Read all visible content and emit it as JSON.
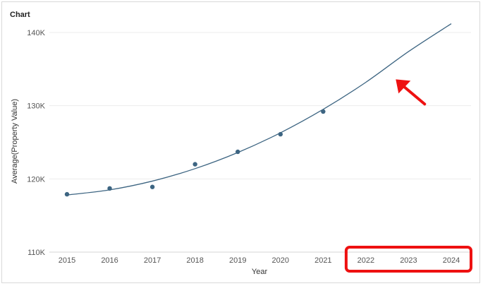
{
  "header": {
    "title": "Chart"
  },
  "colors": {
    "series": "#3d6582",
    "annotation": "#ee1111",
    "grid": "#ececec"
  },
  "chart_data": {
    "type": "scatter",
    "title": "",
    "xlabel": "Year",
    "ylabel": "Average(Property Value)",
    "x": [
      2015,
      2016,
      2017,
      2018,
      2019,
      2020,
      2021
    ],
    "y": [
      117900,
      118700,
      118900,
      122000,
      123700,
      126100,
      129200
    ],
    "x_ticks": [
      "2015",
      "2016",
      "2017",
      "2018",
      "2019",
      "2020",
      "2021",
      "2022",
      "2023",
      "2024"
    ],
    "xlim": [
      2015,
      2024
    ],
    "ylim": [
      110000,
      140000
    ],
    "y_ticks": [
      {
        "value": 110000,
        "label": "110K"
      },
      {
        "value": 120000,
        "label": "120K"
      },
      {
        "value": 130000,
        "label": "130K"
      },
      {
        "value": 140000,
        "label": "140K"
      }
    ],
    "trendline": {
      "type": "polynomial",
      "x": [
        2015,
        2016,
        2017,
        2018,
        2019,
        2020,
        2021,
        2022,
        2023,
        2024
      ],
      "y": [
        117800,
        118500,
        119700,
        121400,
        123600,
        126300,
        129500,
        133200,
        137400,
        141200
      ]
    },
    "grid": true,
    "legend": "none",
    "annotations": [
      {
        "type": "arrow",
        "points_to": "trendline",
        "x": 2022.7,
        "y": 133600
      },
      {
        "type": "highlight-box",
        "around_ticks": [
          "2022",
          "2023",
          "2024"
        ]
      }
    ]
  }
}
